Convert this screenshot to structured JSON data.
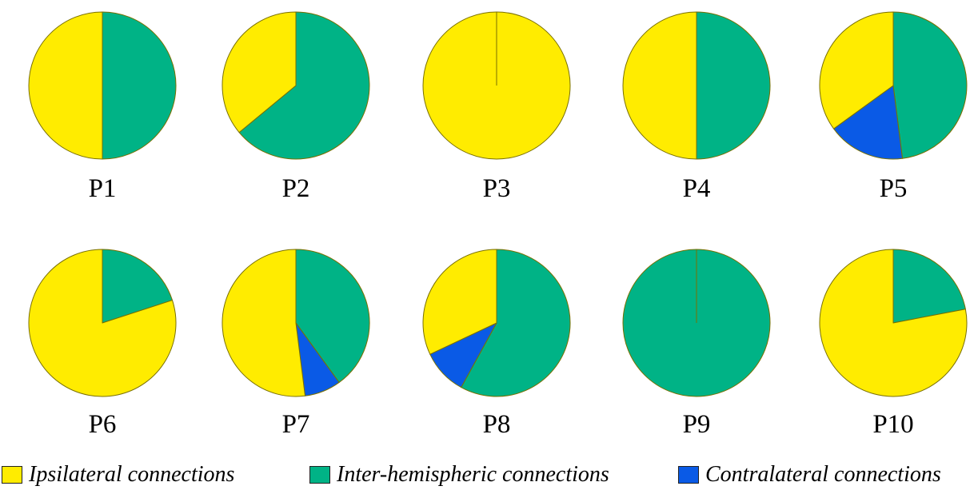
{
  "colors": {
    "ipsilateral": "#ffec00",
    "inter": "#00b386",
    "contra": "#0a5ae6",
    "edge": "#7a7000"
  },
  "chart_data": {
    "type": "pie",
    "series_order": [
      "ipsilateral",
      "inter",
      "contra"
    ],
    "legend": {
      "placement": "bottom",
      "entries": [
        {
          "key": "ipsilateral",
          "label": "Ipsilateral connections"
        },
        {
          "key": "inter",
          "label": "Inter-hemispheric connections"
        },
        {
          "key": "contra",
          "label": "Contralateral connections"
        }
      ]
    },
    "pies": [
      {
        "label": "P1",
        "ipsilateral": 0.5,
        "inter": 0.5,
        "contra": 0.0
      },
      {
        "label": "P2",
        "ipsilateral": 0.36,
        "inter": 0.64,
        "contra": 0.0
      },
      {
        "label": "P3",
        "ipsilateral": 1.0,
        "inter": 0.0,
        "contra": 0.0
      },
      {
        "label": "P4",
        "ipsilateral": 0.5,
        "inter": 0.5,
        "contra": 0.0
      },
      {
        "label": "P5",
        "ipsilateral": 0.35,
        "inter": 0.48,
        "contra": 0.17
      },
      {
        "label": "P6",
        "ipsilateral": 0.8,
        "inter": 0.2,
        "contra": 0.0
      },
      {
        "label": "P7",
        "ipsilateral": 0.52,
        "inter": 0.4,
        "contra": 0.08
      },
      {
        "label": "P8",
        "ipsilateral": 0.32,
        "inter": 0.58,
        "contra": 0.1
      },
      {
        "label": "P9",
        "ipsilateral": 0.0,
        "inter": 1.0,
        "contra": 0.0
      },
      {
        "label": "P10",
        "ipsilateral": 0.78,
        "inter": 0.22,
        "contra": 0.0
      }
    ]
  }
}
